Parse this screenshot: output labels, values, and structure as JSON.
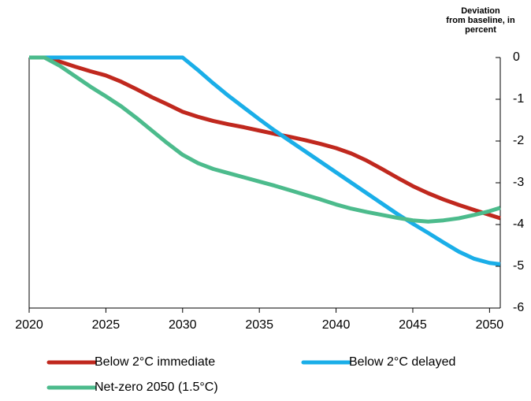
{
  "chart_data": {
    "type": "line",
    "y_label": [
      "Deviation",
      "from baseline, in",
      "percent"
    ],
    "x": [
      2020,
      2021,
      2022,
      2023,
      2024,
      2025,
      2026,
      2027,
      2028,
      2029,
      2030,
      2031,
      2032,
      2033,
      2034,
      2035,
      2036,
      2037,
      2038,
      2039,
      2040,
      2041,
      2042,
      2043,
      2044,
      2045,
      2046,
      2047,
      2048,
      2049,
      2050,
      2050.7
    ],
    "series": [
      {
        "name": "Below 2°C immediate",
        "color": "#c0281e",
        "values": [
          0,
          0,
          -0.1,
          -0.22,
          -0.33,
          -0.43,
          -0.58,
          -0.76,
          -0.95,
          -1.12,
          -1.3,
          -1.42,
          -1.52,
          -1.6,
          -1.67,
          -1.75,
          -1.83,
          -1.9,
          -1.98,
          -2.07,
          -2.17,
          -2.3,
          -2.47,
          -2.67,
          -2.88,
          -3.08,
          -3.25,
          -3.4,
          -3.53,
          -3.65,
          -3.77,
          -3.85
        ]
      },
      {
        "name": "Below 2°C delayed",
        "color": "#1aaee8",
        "values": [
          0,
          0,
          0,
          0,
          0,
          0,
          0,
          0,
          0,
          0,
          0,
          -0.3,
          -0.62,
          -0.92,
          -1.2,
          -1.48,
          -1.75,
          -2.0,
          -2.25,
          -2.5,
          -2.75,
          -3.0,
          -3.25,
          -3.5,
          -3.75,
          -3.98,
          -4.2,
          -4.43,
          -4.65,
          -4.82,
          -4.92,
          -4.95
        ]
      },
      {
        "name": "Net-zero 2050 (1.5°C)",
        "color": "#4cbb8c",
        "values": [
          0,
          0,
          -0.2,
          -0.45,
          -0.7,
          -0.93,
          -1.17,
          -1.45,
          -1.75,
          -2.05,
          -2.33,
          -2.53,
          -2.67,
          -2.77,
          -2.87,
          -2.97,
          -3.07,
          -3.18,
          -3.29,
          -3.4,
          -3.52,
          -3.62,
          -3.7,
          -3.77,
          -3.84,
          -3.9,
          -3.93,
          -3.9,
          -3.85,
          -3.77,
          -3.68,
          -3.6
        ]
      }
    ],
    "xlim": [
      2020,
      2050.7
    ],
    "xticks": [
      2020,
      2025,
      2030,
      2035,
      2040,
      2045,
      2050
    ],
    "ylim": [
      -6,
      0
    ],
    "yticks": [
      0,
      -1,
      -2,
      -3,
      -4,
      -5,
      -6
    ]
  }
}
